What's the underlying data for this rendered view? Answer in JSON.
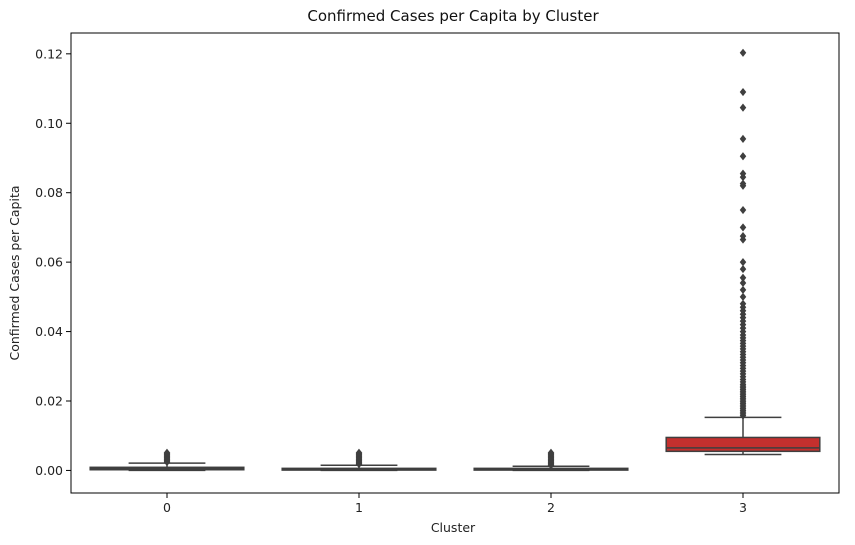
{
  "chart_data": {
    "type": "box",
    "title": "Confirmed Cases per Capita by Cluster",
    "xlabel": "Cluster",
    "ylabel": "Confirmed Cases per Capita",
    "categories": [
      "0",
      "1",
      "2",
      "3"
    ],
    "ylim": [
      -0.0065,
      0.126
    ],
    "yticks": [
      0.0,
      0.02,
      0.04,
      0.06,
      0.08,
      0.1,
      0.12
    ],
    "ytick_labels": [
      "0.00",
      "0.02",
      "0.04",
      "0.06",
      "0.08",
      "0.10",
      "0.12"
    ],
    "grid": false,
    "colors": {
      "box_fills": [
        "#3a58a2",
        "#d8882e",
        "#3c8c3c",
        "#c4302e"
      ],
      "edge": "#3f3f3f"
    },
    "boxes": [
      {
        "category": "0",
        "min": 0.0,
        "q1": 0.0002,
        "median": 0.0005,
        "q3": 0.0009,
        "max": 0.0021,
        "outliers": [
          0.0024,
          0.0027,
          0.003,
          0.0033,
          0.0036,
          0.0039,
          0.0042,
          0.0045,
          0.0048,
          0.0051
        ]
      },
      {
        "category": "1",
        "min": 0.0,
        "q1": 0.0001,
        "median": 0.0003,
        "q3": 0.0006,
        "max": 0.0015,
        "outliers": [
          0.0018,
          0.0021,
          0.0024,
          0.0027,
          0.003,
          0.0033,
          0.0036,
          0.0039,
          0.0042,
          0.0045,
          0.0048,
          0.0051
        ]
      },
      {
        "category": "2",
        "min": 0.0,
        "q1": 0.0001,
        "median": 0.0003,
        "q3": 0.0006,
        "max": 0.0012,
        "outliers": [
          0.0015,
          0.0018,
          0.0021,
          0.0024,
          0.0027,
          0.003,
          0.0033,
          0.0036,
          0.0039,
          0.0042,
          0.0045,
          0.0048,
          0.0051
        ]
      },
      {
        "category": "3",
        "min": 0.0046,
        "q1": 0.0055,
        "median": 0.0065,
        "q3": 0.0095,
        "max": 0.0153,
        "outliers": [
          0.0158,
          0.0163,
          0.0168,
          0.0173,
          0.0178,
          0.0183,
          0.0188,
          0.0193,
          0.0198,
          0.0203,
          0.0208,
          0.0213,
          0.0218,
          0.0223,
          0.0228,
          0.0233,
          0.0238,
          0.0243,
          0.0248,
          0.0255,
          0.0262,
          0.027,
          0.0278,
          0.0286,
          0.0294,
          0.0302,
          0.031,
          0.0318,
          0.0326,
          0.0334,
          0.0342,
          0.035,
          0.0358,
          0.0366,
          0.0374,
          0.0382,
          0.039,
          0.04,
          0.041,
          0.042,
          0.043,
          0.044,
          0.045,
          0.046,
          0.047,
          0.048,
          0.05,
          0.052,
          0.054,
          0.0555,
          0.058,
          0.06,
          0.0665,
          0.0675,
          0.07,
          0.075,
          0.082,
          0.0826,
          0.0845,
          0.0855,
          0.0905,
          0.0955,
          0.1045,
          0.109,
          0.1203
        ]
      }
    ]
  }
}
